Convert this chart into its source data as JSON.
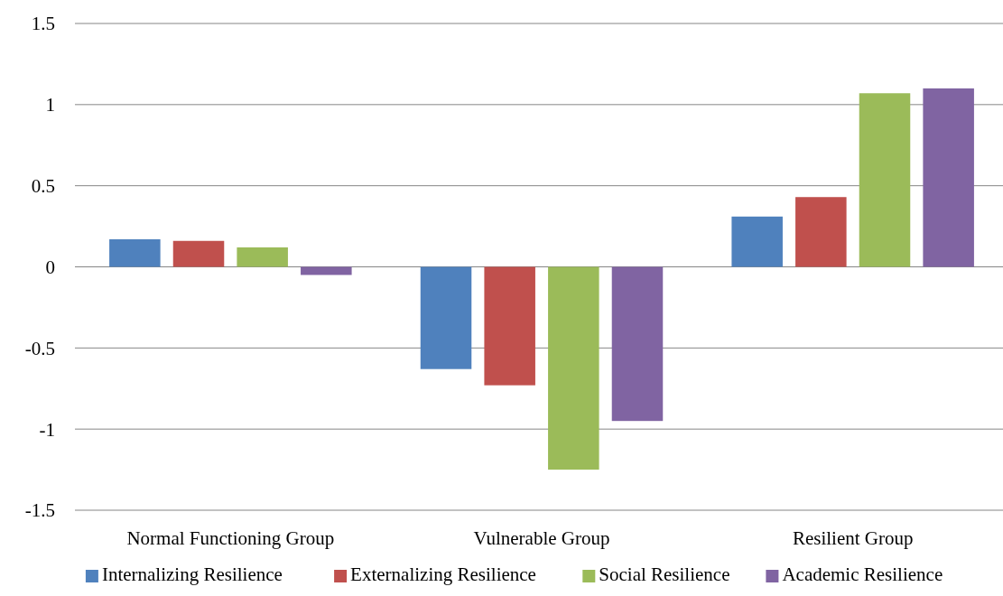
{
  "chart_data": {
    "type": "bar",
    "categories": [
      "Normal Functioning Group",
      "Vulnerable Group",
      "Resilient Group"
    ],
    "series": [
      {
        "name": "Internalizing Resilience",
        "color": "#4f81bd",
        "values": [
          0.17,
          -0.63,
          0.31
        ]
      },
      {
        "name": "Externalizing Resilience",
        "color": "#c0504d",
        "values": [
          0.16,
          -0.73,
          0.43
        ]
      },
      {
        "name": "Social Resilience",
        "color": "#9bbb59",
        "values": [
          0.12,
          -1.25,
          1.07
        ]
      },
      {
        "name": "Academic Resilience",
        "color": "#8064a2",
        "values": [
          -0.05,
          -0.95,
          1.1
        ]
      }
    ],
    "ylim": [
      -1.5,
      1.5
    ],
    "yticks": [
      -1.5,
      -1,
      -0.5,
      0,
      0.5,
      1,
      1.5
    ],
    "grid": "y",
    "legend": "bottom"
  }
}
